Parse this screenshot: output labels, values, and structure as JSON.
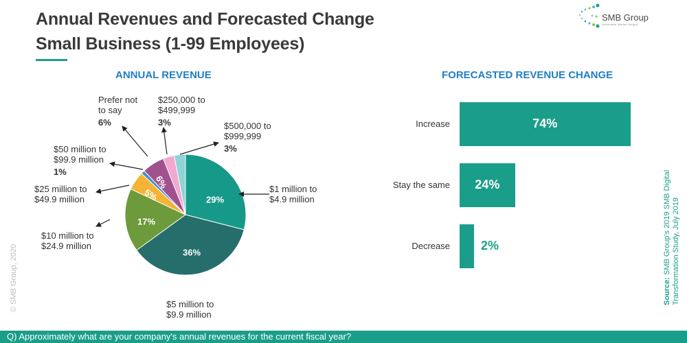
{
  "header": {
    "title_line1": "Annual Revenues and Forecasted Change",
    "title_line2": "Small Business (1-99 Employees)"
  },
  "logo": {
    "name": "SMB Group",
    "tagline": "Actionable Market Insight",
    "colors": [
      "#1a9e8a",
      "#4fb7d6",
      "#8dc63f"
    ]
  },
  "copyright": "© SMB Group, 2020",
  "source": {
    "label": "Source:",
    "text": "SMB Group's 2019 SMB Digital Transformation Study, July 2019"
  },
  "footer": {
    "question": "Q) Approximately what are your company's annual revenues for the current fiscal year?"
  },
  "chart_data": [
    {
      "type": "pie",
      "title": "ANNUAL REVENUE",
      "slices": [
        {
          "label": [
            "$1 million to",
            "$4.9 million"
          ],
          "value": 29,
          "value_label": "29%",
          "color": "#17998a",
          "label_position": "inside"
        },
        {
          "label": [
            "$5 million to",
            "$9.9 million"
          ],
          "value": 36,
          "value_label": "36%",
          "color": "#256e6b",
          "label_position": "inside"
        },
        {
          "label": [
            "$10 million to",
            "$24.9 million"
          ],
          "value": 17,
          "value_label": "17%",
          "color": "#6d9a3a",
          "label_position": "inside"
        },
        {
          "label": [
            "$25 million to",
            "$49.9 million"
          ],
          "value": 5,
          "value_label": "5%",
          "color": "#f5b335",
          "label_position": "inside"
        },
        {
          "label": [
            "$50 million to",
            "$99.9 million"
          ],
          "value": 1,
          "value_label": "1%",
          "color": "#4a8fc9",
          "label_position": "outside"
        },
        {
          "label": [
            "Prefer not",
            "to say"
          ],
          "value": 6,
          "value_label": "6%",
          "color": "#a0528e",
          "label_position": "inside"
        },
        {
          "label": [
            "$250,000 to",
            "$499,999"
          ],
          "value": 3,
          "value_label": "3%",
          "color": "#f2a8cf",
          "label_position": "outside"
        },
        {
          "label": [
            "$500,000 to",
            "$999,999"
          ],
          "value": 3,
          "value_label": "3%",
          "color": "#8fd4d6",
          "label_position": "outside"
        }
      ]
    },
    {
      "type": "bar",
      "orientation": "horizontal",
      "title": "FORECASTED REVENUE CHANGE",
      "categories": [
        "Increase",
        "Stay the same",
        "Decrease"
      ],
      "values": [
        74,
        24,
        2
      ],
      "value_labels": [
        "74%",
        "24%",
        "2%"
      ],
      "color": "#1a9e8a",
      "xlim": [
        0,
        75
      ]
    }
  ]
}
